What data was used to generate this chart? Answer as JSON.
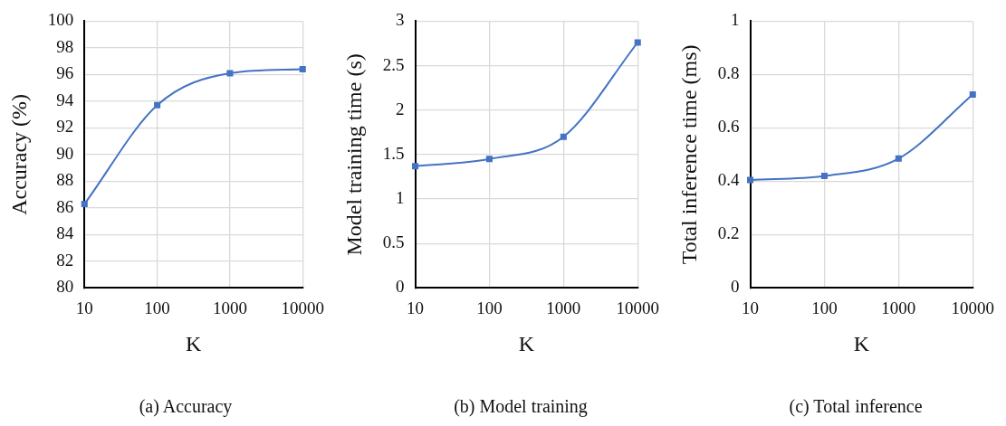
{
  "chart_data": [
    {
      "type": "line",
      "xlabel": "K",
      "ylabel": "Accuracy (%)",
      "categories": [
        "10",
        "100",
        "1000",
        "10000"
      ],
      "series": [
        {
          "color": "#4472c4",
          "values": [
            86.3,
            93.7,
            96.1,
            96.4
          ]
        }
      ],
      "ylim": [
        80,
        100
      ],
      "yticks": [
        80,
        82,
        84,
        86,
        88,
        90,
        92,
        94,
        96,
        98,
        100
      ],
      "grid": true,
      "marker": "square",
      "line_style": "solid",
      "legend": false,
      "annotations": [
        "(a)  Accuracy"
      ]
    },
    {
      "type": "line",
      "xlabel": "K",
      "ylabel": "Model training time (s)",
      "categories": [
        "10",
        "100",
        "1000",
        "10000"
      ],
      "series": [
        {
          "color": "#4472c4",
          "values": [
            1.37,
            1.45,
            1.7,
            2.76
          ]
        }
      ],
      "ylim": [
        0,
        3
      ],
      "yticks": [
        0,
        0.5,
        1,
        1.5,
        2,
        2.5,
        3
      ],
      "grid": true,
      "marker": "square",
      "line_style": "solid",
      "legend": false,
      "annotations": [
        "(b)  Model training"
      ]
    },
    {
      "type": "line",
      "xlabel": "K",
      "ylabel": "Total inference time (ms)",
      "categories": [
        "10",
        "100",
        "1000",
        "10000"
      ],
      "series": [
        {
          "color": "#4472c4",
          "values": [
            0.405,
            0.42,
            0.485,
            0.725
          ]
        }
      ],
      "ylim": [
        0,
        1
      ],
      "yticks": [
        0,
        0.2,
        0.4,
        0.6,
        0.8,
        1
      ],
      "grid": true,
      "marker": "square",
      "line_style": "solid",
      "legend": false,
      "annotations": [
        "(c)  Total inference"
      ]
    }
  ]
}
